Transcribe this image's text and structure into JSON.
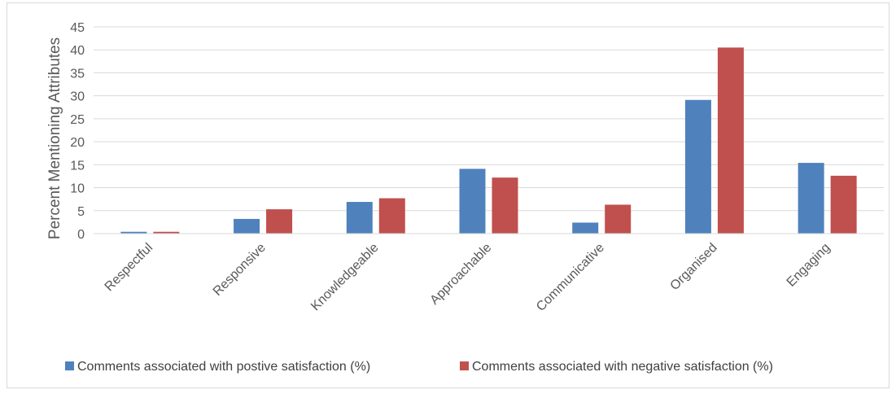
{
  "chart_data": {
    "type": "bar",
    "title": "",
    "xlabel": "",
    "ylabel": "Percent Mentioning Attributes",
    "ylim": [
      0,
      45
    ],
    "yticks": [
      0,
      5,
      10,
      15,
      20,
      25,
      30,
      35,
      40,
      45
    ],
    "grid": true,
    "legend_position": "bottom",
    "categories": [
      "Respectful",
      "Responsive",
      "Knowledgeable",
      "Approachable",
      "Communicative",
      "Organised",
      "Engaging"
    ],
    "series": [
      {
        "name": "Comments associated with postive satisfaction (%)",
        "color": "#4f81bd",
        "values": [
          0.4,
          3.2,
          6.9,
          14.1,
          2.4,
          29.1,
          15.4
        ]
      },
      {
        "name": "Comments associated with negative satisfaction (%)",
        "color": "#c0504d",
        "values": [
          0.4,
          5.3,
          7.7,
          12.2,
          6.3,
          40.5,
          12.6
        ]
      }
    ]
  }
}
